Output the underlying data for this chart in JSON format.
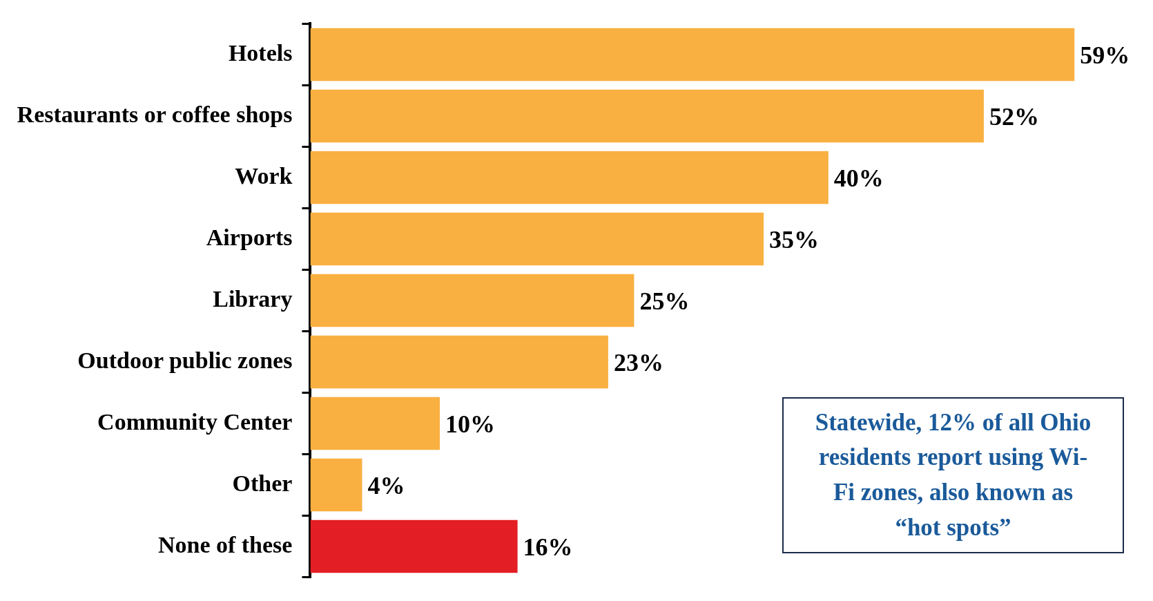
{
  "chart_data": {
    "type": "bar",
    "orientation": "horizontal",
    "categories": [
      "Hotels",
      "Restaurants or coffee shops",
      "Work",
      "Airports",
      "Library",
      "Outdoor public zones",
      "Community Center",
      "Other",
      "None of these"
    ],
    "values": [
      59,
      52,
      40,
      35,
      25,
      23,
      10,
      4,
      16
    ],
    "colors": [
      "#f9b041",
      "#f9b041",
      "#f9b041",
      "#f9b041",
      "#f9b041",
      "#f9b041",
      "#f9b041",
      "#f9b041",
      "#e31e24"
    ],
    "value_labels": [
      "59%",
      "52%",
      "40%",
      "35%",
      "25%",
      "23%",
      "10%",
      "4%",
      "16%"
    ],
    "annotations": [
      "Statewide, 12% of all Ohio residents report using Wi-Fi zones, also known as “hot spots”"
    ],
    "legend": false
  }
}
